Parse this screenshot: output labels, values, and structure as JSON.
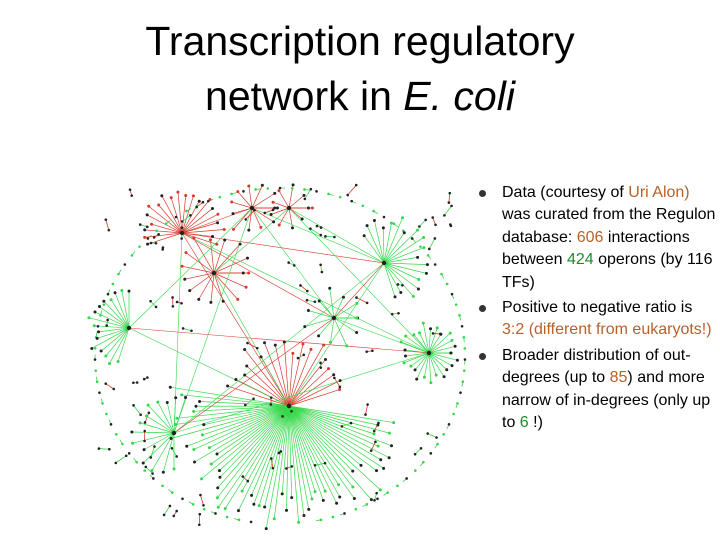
{
  "title": {
    "line1": "Transcription regulatory",
    "line2_prefix": "network in ",
    "line2_italic": "E. coli"
  },
  "colors": {
    "activating_edges": "#36d84a",
    "repressing_edges": "#d63a2a",
    "nodes": "#222222",
    "highlight_orange": "#b8602a",
    "highlight_green": "#1f8a2c"
  },
  "bullets": [
    {
      "parts": [
        {
          "t": " Data (courtesy of ",
          "c": ""
        },
        {
          "t": "Uri Alon)",
          "c": "o"
        },
        {
          "t": " was curated from the Regulon database: ",
          "c": ""
        },
        {
          "t": "606",
          "c": "o"
        },
        {
          "t": " interactions between ",
          "c": ""
        },
        {
          "t": "424",
          "c": "g"
        },
        {
          "t": " operons (by 116 TFs)",
          "c": ""
        }
      ]
    },
    {
      "parts": [
        {
          "t": "Positive to negative ratio is ",
          "c": ""
        },
        {
          "t": "3:2 (different from eukaryots!)",
          "c": "o"
        }
      ]
    },
    {
      "parts": [
        {
          "t": "Broader distribution of out-degrees (up to ",
          "c": ""
        },
        {
          "t": "85",
          "c": "o"
        },
        {
          "t": ") and more narrow of in-degrees (only up to ",
          "c": ""
        },
        {
          "t": "6",
          "c": "g"
        },
        {
          "t": " !)",
          "c": ""
        }
      ]
    }
  ]
}
